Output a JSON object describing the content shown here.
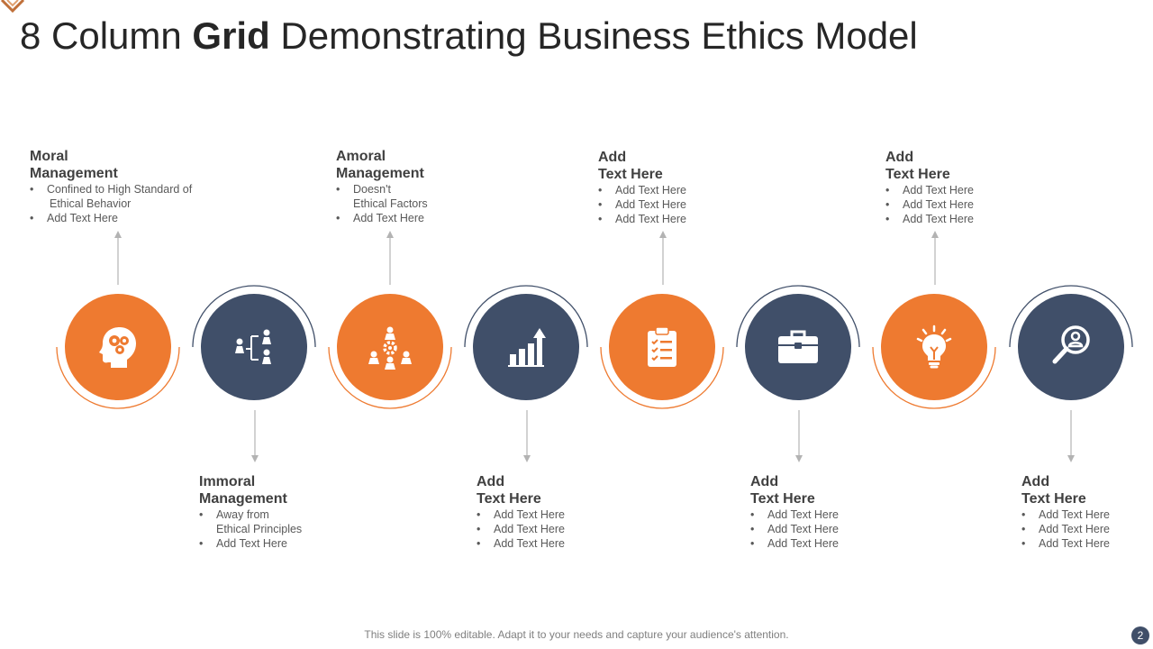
{
  "title": {
    "part1": "8 Column ",
    "bold": "Grid",
    "part2": " Demonstrating Business Ethics Model"
  },
  "colors": {
    "orange": "#ee7a30",
    "navy": "#404f69",
    "arrow": "#b3b3b3"
  },
  "steps": [
    {
      "icon": "head-gears-icon",
      "color": "orange",
      "heading1": "Moral",
      "heading2": "Management",
      "bullets": [
        "Confined  to High Standard  of",
        "Ethical Behavior",
        "Add Text Here"
      ]
    },
    {
      "icon": "org-structure-icon",
      "color": "navy",
      "heading1": "Immoral",
      "heading2": "Management",
      "bullets": [
        "Away from",
        "Ethical Principles",
        "Add Text Here"
      ]
    },
    {
      "icon": "team-gear-icon",
      "color": "orange",
      "heading1": "Amoral",
      "heading2": "Management",
      "bullets": [
        "Doesn't",
        "Ethical Factors",
        "Add Text Here"
      ]
    },
    {
      "icon": "bar-chart-arrow-icon",
      "color": "navy",
      "heading1": "Add",
      "heading2": "Text Here",
      "bullets": [
        "Add Text Here",
        "Add Text Here",
        "Add Text Here"
      ]
    },
    {
      "icon": "clipboard-checklist-icon",
      "color": "orange",
      "heading1": "Add",
      "heading2": "Text Here",
      "bullets": [
        "Add Text Here",
        "Add Text Here",
        "Add Text Here"
      ]
    },
    {
      "icon": "briefcase-icon",
      "color": "navy",
      "heading1": "Add",
      "heading2": "Text Here",
      "bullets": [
        "Add Text Here",
        "Add Text Here",
        "Add Text Here"
      ]
    },
    {
      "icon": "lightbulb-icon",
      "color": "orange",
      "heading1": "Add",
      "heading2": "Text Here",
      "bullets": [
        "Add Text Here",
        "Add Text Here",
        "Add Text Here"
      ]
    },
    {
      "icon": "person-search-icon",
      "color": "navy",
      "heading1": "Add",
      "heading2": "Text Here",
      "bullets": [
        "Add Text Here",
        "Add Text Here",
        "Add Text Here"
      ]
    }
  ],
  "footer": "This slide is 100% editable. Adapt it to your needs and capture your audience's attention.",
  "page_number": "2"
}
